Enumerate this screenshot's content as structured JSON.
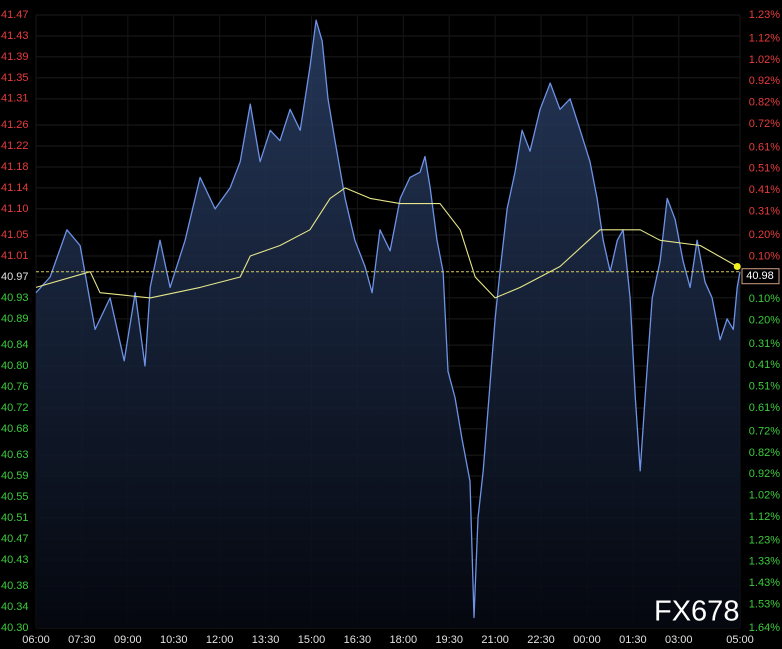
{
  "chart_data": {
    "type": "line",
    "watermark": "FX678",
    "last_price": 40.98,
    "grid": true,
    "up_color": "#e83c3c",
    "down_color": "#3ccc3c",
    "flat_color": "#e0e0e0",
    "xlim": [
      0,
      23
    ],
    "xticks": [
      {
        "value": 0,
        "label": "06:00"
      },
      {
        "value": 1.5,
        "label": "07:30"
      },
      {
        "value": 3,
        "label": "09:00"
      },
      {
        "value": 4.5,
        "label": "10:30"
      },
      {
        "value": 6,
        "label": "12:00"
      },
      {
        "value": 7.5,
        "label": "13:30"
      },
      {
        "value": 9,
        "label": "15:00"
      },
      {
        "value": 10.5,
        "label": "16:30"
      },
      {
        "value": 12,
        "label": "18:00"
      },
      {
        "value": 13.5,
        "label": "19:30"
      },
      {
        "value": 15,
        "label": "21:00"
      },
      {
        "value": 16.5,
        "label": "22:30"
      },
      {
        "value": 18,
        "label": "00:00"
      },
      {
        "value": 19.5,
        "label": "01:30"
      },
      {
        "value": 21,
        "label": "03:00"
      },
      {
        "value": 23,
        "label": "05:00"
      }
    ],
    "ylim": [
      40.3,
      41.47
    ],
    "yticks": [
      41.47,
      41.43,
      41.39,
      41.35,
      41.31,
      41.26,
      41.22,
      41.18,
      41.14,
      {
        "value": 41.1,
        "label": "41.10"
      },
      41.05,
      41.01,
      40.97,
      40.93,
      40.89,
      40.84,
      {
        "value": 40.8,
        "label": "40.80"
      },
      40.76,
      40.72,
      40.68,
      40.63,
      40.59,
      40.55,
      40.51,
      40.47,
      40.43,
      40.38,
      40.34,
      {
        "value": 40.3,
        "label": "40.30"
      }
    ],
    "y2lim": [
      -1.64,
      1.23
    ],
    "y2ticks": [
      {
        "value": 1.23,
        "label": "1.23%"
      },
      {
        "value": 1.12,
        "label": "1.12%"
      },
      {
        "value": 1.02,
        "label": "1.02%"
      },
      {
        "value": 0.92,
        "label": "0.92%"
      },
      {
        "value": 0.82,
        "label": "0.82%"
      },
      {
        "value": 0.72,
        "label": "0.72%"
      },
      {
        "value": 0.61,
        "label": "0.61%"
      },
      {
        "value": 0.51,
        "label": "0.51%"
      },
      {
        "value": 0.41,
        "label": "0.41%"
      },
      {
        "value": 0.31,
        "label": "0.31%"
      },
      {
        "value": 0.2,
        "label": "0.20%"
      },
      {
        "value": 0.1,
        "label": "0.10%"
      },
      {
        "value": -0.1,
        "label": "0.10%"
      },
      {
        "value": -0.2,
        "label": "0.20%"
      },
      {
        "value": -0.31,
        "label": "0.31%"
      },
      {
        "value": -0.41,
        "label": "0.41%"
      },
      {
        "value": -0.51,
        "label": "0.51%"
      },
      {
        "value": -0.61,
        "label": "0.61%"
      },
      {
        "value": -0.72,
        "label": "0.72%"
      },
      {
        "value": -0.82,
        "label": "0.82%"
      },
      {
        "value": -0.92,
        "label": "0.92%"
      },
      {
        "value": -1.02,
        "label": "1.02%"
      },
      {
        "value": -1.12,
        "label": "1.12%"
      },
      {
        "value": -1.23,
        "label": "1.23%"
      },
      {
        "value": -1.33,
        "label": "1.33%"
      },
      {
        "value": -1.43,
        "label": "1.43%"
      },
      {
        "value": -1.53,
        "label": "1.53%"
      },
      {
        "value": -1.64,
        "label": "1.64%"
      }
    ],
    "series": [
      {
        "color": "#6d93e6",
        "fill": true,
        "x": [
          0,
          0.46,
          1.01,
          1.44,
          1.93,
          2.42,
          2.88,
          3.24,
          3.56,
          3.73,
          4.05,
          4.38,
          4.87,
          5.36,
          5.85,
          6.34,
          6.67,
          7.0,
          7.32,
          7.65,
          7.97,
          8.3,
          8.63,
          8.95,
          9.15,
          9.35,
          9.54,
          9.77,
          10.1,
          10.42,
          10.75,
          10.98,
          11.24,
          11.57,
          11.9,
          12.22,
          12.55,
          12.71,
          12.88,
          13.1,
          13.3,
          13.46,
          13.69,
          13.92,
          14.18,
          14.31,
          14.44,
          14.61,
          14.84,
          15.0,
          15.16,
          15.39,
          15.65,
          15.88,
          16.14,
          16.47,
          16.8,
          17.12,
          17.45,
          17.78,
          18.1,
          18.33,
          18.53,
          18.76,
          18.99,
          19.18,
          19.41,
          19.58,
          19.74,
          19.9,
          20.13,
          20.39,
          20.62,
          20.88,
          21.14,
          21.37,
          21.6,
          21.86,
          22.09,
          22.35,
          22.58,
          22.78,
          22.91,
          23
        ],
        "values": [
          40.94,
          40.97,
          41.06,
          41.03,
          40.87,
          40.93,
          40.81,
          40.94,
          40.8,
          40.95,
          41.04,
          40.95,
          41.04,
          41.16,
          41.1,
          41.14,
          41.19,
          41.3,
          41.19,
          41.25,
          41.23,
          41.29,
          41.25,
          41.37,
          41.46,
          41.42,
          41.31,
          41.23,
          41.12,
          41.04,
          40.99,
          40.94,
          41.06,
          41.02,
          41.12,
          41.16,
          41.17,
          41.2,
          41.14,
          41.04,
          40.98,
          40.79,
          40.74,
          40.66,
          40.58,
          40.32,
          40.51,
          40.6,
          40.77,
          40.89,
          40.98,
          41.1,
          41.17,
          41.25,
          41.21,
          41.29,
          41.34,
          41.29,
          41.31,
          41.25,
          41.19,
          41.12,
          41.04,
          40.98,
          41.04,
          41.06,
          40.93,
          40.74,
          40.6,
          40.74,
          40.93,
          41.0,
          41.12,
          41.08,
          41.0,
          40.95,
          41.04,
          40.96,
          40.93,
          40.85,
          40.89,
          40.87,
          40.95,
          40.98
        ]
      },
      {
        "color": "#e6e68a",
        "fill": false,
        "x": [
          0,
          1.77,
          2.09,
          3.73,
          5.36,
          6.67,
          7.0,
          7.97,
          8.95,
          9.61,
          10.1,
          10.92,
          11.9,
          13.2,
          13.86,
          14.35,
          15.0,
          15.82,
          17.12,
          18.43,
          19.74,
          20.39,
          21.7,
          22.91
        ],
        "values": [
          40.95,
          40.98,
          40.94,
          40.93,
          40.95,
          40.97,
          41.01,
          41.03,
          41.06,
          41.12,
          41.14,
          41.12,
          41.11,
          41.11,
          41.06,
          40.97,
          40.93,
          40.95,
          40.99,
          41.06,
          41.06,
          41.04,
          41.03,
          40.99
        ]
      }
    ]
  }
}
